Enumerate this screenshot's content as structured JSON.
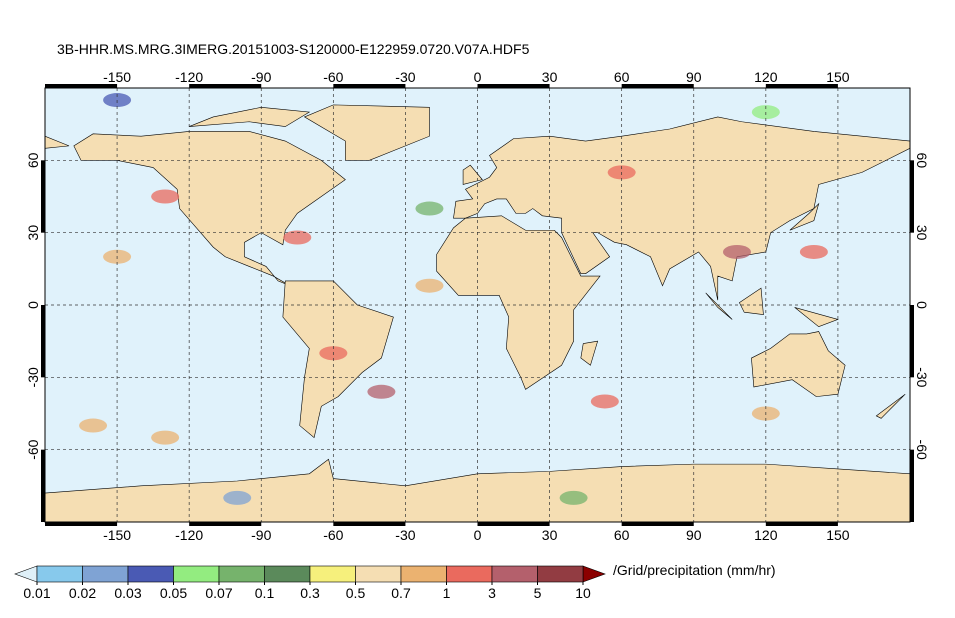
{
  "title": "3B-HHR.MS.MRG.3IMERG.20151003-S120000-E122959.0720.V07A.HDF5",
  "map": {
    "xlim": [
      -180,
      180
    ],
    "ylim": [
      -90,
      90
    ],
    "xticks": [
      -150,
      -120,
      -90,
      -60,
      -30,
      0,
      30,
      60,
      90,
      120,
      150
    ],
    "yticks": [
      -60,
      -30,
      0,
      30,
      60
    ],
    "grid": true,
    "ocean_color": "#e0f2fb",
    "land_color": "#f5deb3"
  },
  "colorbar": {
    "label": "/Grid/precipitation (mm/hr)",
    "levels": [
      0.01,
      0.02,
      0.03,
      0.05,
      0.07,
      0.1,
      0.3,
      0.5,
      0.7,
      1,
      3,
      5,
      10
    ],
    "colors": [
      "#87c9ec",
      "#7fa3d4",
      "#4a5ab4",
      "#93ec80",
      "#76b36c",
      "#5b8a5b",
      "#f6f07c",
      "#f5deb3",
      "#ebb270",
      "#ea6a5e",
      "#b4606c",
      "#923c42"
    ],
    "under_color": "#dff0f8",
    "over_color": "#8b0000"
  }
}
